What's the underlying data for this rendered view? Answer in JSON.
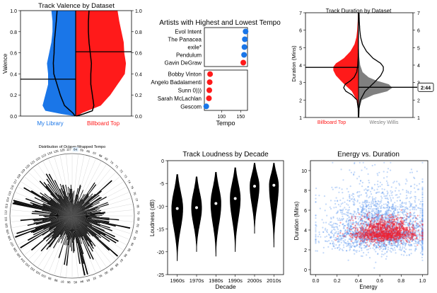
{
  "colors": {
    "blue": "#1a76e8",
    "red": "#ff1a1a",
    "gray": "#808080",
    "black": "#000000",
    "scatter_blue": "#4f8fef",
    "scatter_red": "#ee2233",
    "bar_highlight": "#e0f0ff"
  },
  "chart_data": [
    {
      "id": "valence",
      "type": "violin",
      "title": "Track Valence by Dataset",
      "xlabel": "",
      "ylabel": "Valence",
      "ylim": [
        0,
        1.0
      ],
      "yticks": [
        "0.0",
        "0.2",
        "0.4",
        "0.6",
        "0.8",
        "1.0"
      ],
      "groups": [
        {
          "name": "My Library",
          "color_key": "blue",
          "median": 0.35
        },
        {
          "name": "Billboard Top",
          "color_key": "red",
          "median": 0.61
        }
      ],
      "density_blue": [
        [
          0.0,
          0.02
        ],
        [
          0.02,
          0.26
        ],
        [
          0.05,
          0.55
        ],
        [
          0.1,
          0.6
        ],
        [
          0.2,
          0.55
        ],
        [
          0.3,
          0.5
        ],
        [
          0.4,
          0.5
        ],
        [
          0.5,
          0.52
        ],
        [
          0.6,
          0.48
        ],
        [
          0.7,
          0.44
        ],
        [
          0.8,
          0.42
        ],
        [
          0.9,
          0.42
        ],
        [
          1.0,
          0.44
        ]
      ],
      "density_red": [
        [
          0.0,
          0.02
        ],
        [
          0.03,
          0.12
        ],
        [
          0.1,
          0.45
        ],
        [
          0.2,
          0.62
        ],
        [
          0.3,
          0.75
        ],
        [
          0.4,
          0.88
        ],
        [
          0.5,
          0.9
        ],
        [
          0.6,
          0.87
        ],
        [
          0.7,
          0.86
        ],
        [
          0.8,
          0.82
        ],
        [
          0.9,
          0.78
        ],
        [
          1.0,
          0.75
        ]
      ]
    },
    {
      "id": "tempo",
      "type": "dot",
      "title": "Artists with Highest and Lowest Tempo",
      "xlabel": "Tempo",
      "xlim": [
        55,
        168
      ],
      "xticks": [
        100,
        150
      ],
      "top_group": [
        {
          "artist": "Evol Intent",
          "tempo": 163,
          "color_key": "blue"
        },
        {
          "artist": "The Panacea",
          "tempo": 161,
          "color_key": "blue"
        },
        {
          "artist": "exile*",
          "tempo": 160,
          "color_key": "blue"
        },
        {
          "artist": "Pendulum",
          "tempo": 159,
          "color_key": "blue"
        },
        {
          "artist": "Gavin DeGraw",
          "tempo": 157,
          "color_key": "red"
        }
      ],
      "bottom_group": [
        {
          "artist": "Bobby Vinton",
          "tempo": 70,
          "color_key": "red"
        },
        {
          "artist": "Angelo Badalamenti",
          "tempo": 69,
          "color_key": "red"
        },
        {
          "artist": "Sunn 0)))",
          "tempo": 68,
          "color_key": "red"
        },
        {
          "artist": "Sarah McLachlan",
          "tempo": 67,
          "color_key": "red"
        },
        {
          "artist": "Gescom",
          "tempo": 60,
          "color_key": "blue"
        }
      ]
    },
    {
      "id": "duration",
      "type": "violin",
      "title": "Track Duration by Dataset",
      "ylabel": "Duration (Mins)",
      "ylim": [
        1,
        7
      ],
      "yticks": [
        "1",
        "2",
        "3",
        "4",
        "5",
        "6",
        "7"
      ],
      "groups": [
        {
          "name": "Billboard Top",
          "color_key": "red",
          "median": 3.87
        },
        {
          "name": "Wesley Willis",
          "color_key": "gray",
          "median": 2.73
        }
      ],
      "annotation": "2:44",
      "density_red": [
        [
          1.0,
          0.01
        ],
        [
          1.5,
          0.02
        ],
        [
          2.0,
          0.07
        ],
        [
          2.5,
          0.25
        ],
        [
          3.0,
          0.6
        ],
        [
          3.4,
          0.85
        ],
        [
          3.7,
          0.95
        ],
        [
          3.9,
          0.95
        ],
        [
          4.1,
          0.85
        ],
        [
          4.4,
          0.55
        ],
        [
          4.8,
          0.3
        ],
        [
          5.2,
          0.15
        ],
        [
          5.6,
          0.08
        ],
        [
          6.0,
          0.05
        ],
        [
          6.5,
          0.03
        ],
        [
          7.0,
          0.02
        ]
      ],
      "density_gray": [
        [
          1.0,
          0.01
        ],
        [
          1.5,
          0.02
        ],
        [
          2.0,
          0.1
        ],
        [
          2.3,
          0.45
        ],
        [
          2.5,
          0.85
        ],
        [
          2.7,
          1.0
        ],
        [
          2.9,
          0.9
        ],
        [
          3.1,
          0.55
        ],
        [
          3.3,
          0.3
        ],
        [
          3.6,
          0.12
        ],
        [
          4.0,
          0.05
        ],
        [
          4.5,
          0.02
        ],
        [
          5.0,
          0.01
        ]
      ]
    },
    {
      "id": "octave",
      "type": "polar_bar",
      "title": "Distribution of Octave-Wrapped Tempo",
      "theta_range": [
        64,
        128
      ],
      "theta_labels": [
        64,
        65,
        66,
        67,
        68,
        69,
        70,
        71,
        72,
        73,
        74,
        75,
        76,
        77,
        78,
        79,
        80,
        81,
        82,
        83,
        84,
        85,
        86,
        87,
        88,
        89,
        90,
        91,
        92,
        93,
        94,
        95,
        96,
        97,
        98,
        99,
        100,
        101,
        102,
        103,
        104,
        105,
        106,
        107,
        108,
        109,
        110,
        111,
        112,
        113,
        114,
        115,
        116,
        117,
        118,
        119,
        120,
        121,
        122,
        123,
        124,
        125,
        126,
        127
      ],
      "highlight_label": 64,
      "values": [
        0.28,
        0.22,
        0.35,
        0.2,
        0.3,
        0.25,
        0.4,
        0.3,
        0.55,
        0.35,
        0.45,
        0.3,
        0.38,
        0.3,
        0.42,
        0.35,
        0.5,
        0.4,
        0.6,
        0.45,
        0.5,
        0.55,
        0.45,
        0.65,
        0.5,
        0.45,
        0.7,
        0.6,
        0.5,
        0.75,
        0.55,
        0.6,
        0.4,
        0.55,
        0.35,
        0.45,
        0.4,
        0.5,
        0.45,
        0.55,
        0.6,
        0.5,
        0.65,
        0.55,
        0.7,
        0.5,
        0.45,
        0.55,
        0.4,
        0.5,
        0.85,
        0.55,
        0.45,
        0.6,
        0.5,
        0.4,
        0.55,
        0.45,
        0.5,
        0.4,
        0.35,
        0.4,
        0.3,
        0.35
      ]
    },
    {
      "id": "loudness",
      "type": "violin",
      "title": "Track Loudness by Decade",
      "xlabel": "Decade",
      "ylabel": "Loudness (dB)",
      "ylim": [
        -25,
        0
      ],
      "yticks": [
        0,
        -5,
        -10,
        -15,
        -20,
        -25
      ],
      "categories": [
        "1960s",
        "1970s",
        "1980s",
        "1990s",
        "2000s",
        "2010s"
      ],
      "medians": [
        -10.5,
        -10.3,
        -9.4,
        -8.3,
        -5.6,
        -5.4
      ],
      "ranges": [
        [
          -22,
          -3.0
        ],
        [
          -20,
          -3.5
        ],
        [
          -21,
          -2.5
        ],
        [
          -20,
          -1.5
        ],
        [
          -16,
          -0.5
        ],
        [
          -19,
          -0.5
        ]
      ],
      "max_width": [
        0.6,
        0.55,
        0.55,
        0.55,
        0.5,
        0.5
      ]
    },
    {
      "id": "energy",
      "type": "scatter",
      "title": "Energy vs. Duration",
      "xlabel": "Energy",
      "ylabel": "Duration (Mins)",
      "xlim": [
        -0.05,
        1.05
      ],
      "ylim": [
        -0.5,
        11
      ],
      "xticks": [
        "0.0",
        "0.2",
        "0.4",
        "0.6",
        "0.8",
        "1.0"
      ],
      "yticks": [
        0,
        2,
        4,
        6,
        8,
        10
      ],
      "series": [
        {
          "color_key": "scatter_blue",
          "x_mean": 0.6,
          "x_sd": 0.25,
          "y_mean": 3.9,
          "y_sd": 1.4
        },
        {
          "color_key": "scatter_red",
          "x_mean": 0.65,
          "x_sd": 0.15,
          "y_mean": 3.7,
          "y_sd": 0.6
        }
      ]
    }
  ]
}
